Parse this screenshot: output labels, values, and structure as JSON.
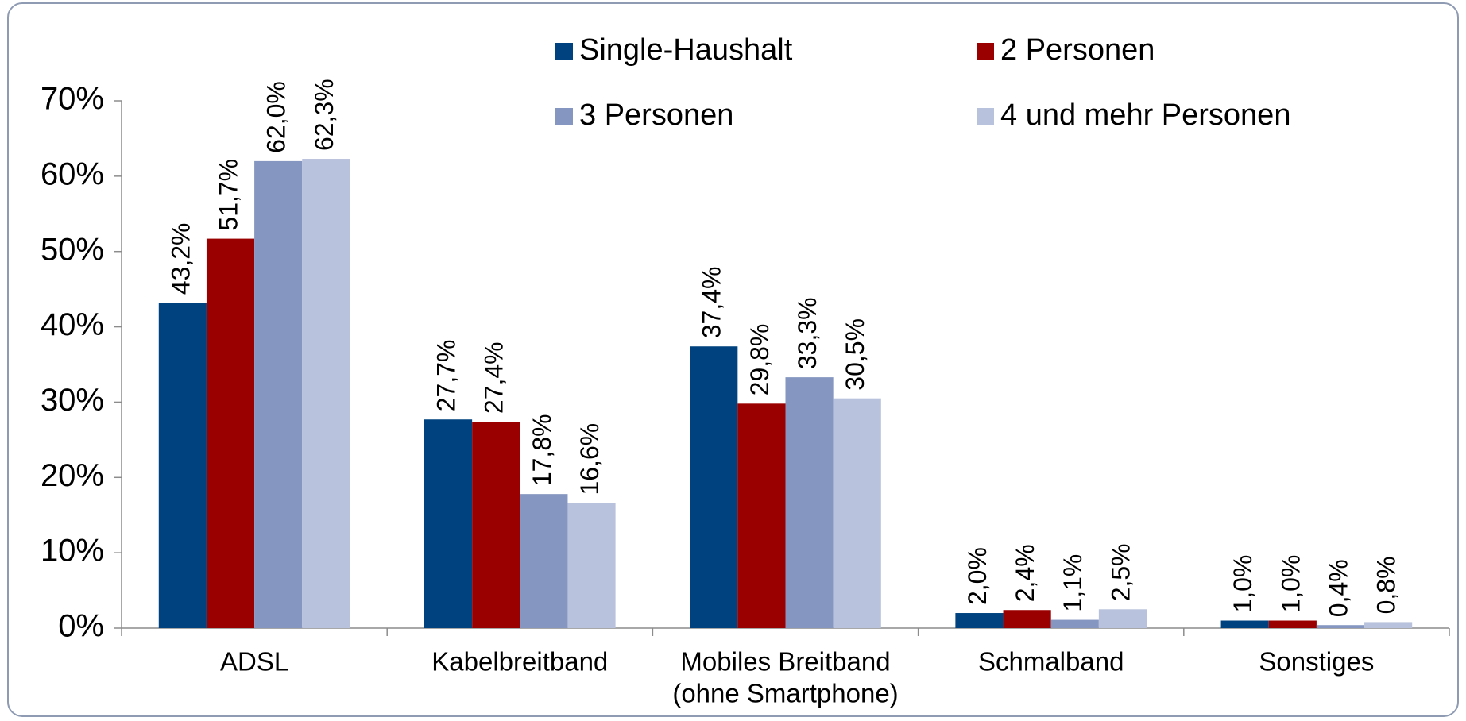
{
  "chart_data": {
    "type": "bar",
    "categories": [
      "ADSL",
      "Kabelbreitband",
      [
        "Mobiles Breitband",
        "(ohne Smartphone)"
      ],
      "Schmalband",
      "Sonstiges"
    ],
    "series": [
      {
        "name": "Single-Haushalt",
        "color": "#00427f",
        "values": [
          43.2,
          27.7,
          37.4,
          2.0,
          1.0
        ],
        "value_labels": [
          "43,2%",
          "27,7%",
          "37,4%",
          "2,0%",
          "1,0%"
        ]
      },
      {
        "name": "2 Personen",
        "color": "#9a0000",
        "values": [
          51.7,
          27.4,
          29.8,
          2.4,
          1.0
        ],
        "value_labels": [
          "51,7%",
          "27,4%",
          "29,8%",
          "2,4%",
          "1,0%"
        ]
      },
      {
        "name": "3 Personen",
        "color": "#8596c0",
        "values": [
          62.0,
          17.8,
          33.3,
          1.1,
          0.4
        ],
        "value_labels": [
          "62,0%",
          "17,8%",
          "33,3%",
          "1,1%",
          "0,4%"
        ]
      },
      {
        "name": "4 und mehr Personen",
        "color": "#b9c2dc",
        "values": [
          62.3,
          16.6,
          30.5,
          2.5,
          0.8
        ],
        "value_labels": [
          "62,3%",
          "16,6%",
          "30,5%",
          "2,5%",
          "0,8%"
        ]
      }
    ],
    "ylim": [
      0,
      70
    ],
    "yticks": [
      {
        "value": 0,
        "label": "0%"
      },
      {
        "value": 10,
        "label": "10%"
      },
      {
        "value": 20,
        "label": "20%"
      },
      {
        "value": 30,
        "label": "30%"
      },
      {
        "value": 40,
        "label": "40%"
      },
      {
        "value": 50,
        "label": "50%"
      },
      {
        "value": 60,
        "label": "60%"
      },
      {
        "value": 70,
        "label": "70%"
      }
    ],
    "grid": false
  }
}
